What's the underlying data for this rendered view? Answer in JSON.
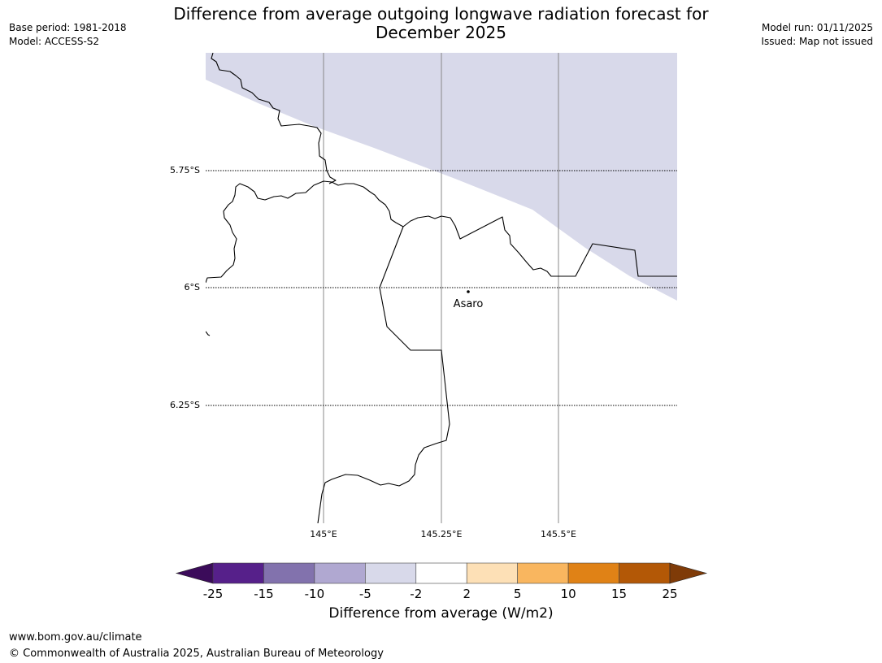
{
  "header": {
    "title_line1": "Difference from average outgoing longwave radiation forecast for",
    "title_line2": "December 2025",
    "base_period": "Base period: 1981-2018",
    "model": "Model: ACCESS-S2",
    "model_run": "Model run: 01/11/2025",
    "issued": "Issued: Map not issued"
  },
  "map": {
    "lat_labels": [
      "5.75°S",
      "6°S",
      "6.25°S"
    ],
    "lon_labels": [
      "145°E",
      "145.25°E",
      "145.5°E"
    ],
    "place_name": "Asaro",
    "colors": {
      "anomaly_fill": "#d8d9ea",
      "coastline": "#000000",
      "meridian": "#888888"
    }
  },
  "colorbar": {
    "label": "Difference from average (W/m2)",
    "ticks": [
      "-25",
      "-15",
      "-10",
      "-5",
      "-2",
      "2",
      "5",
      "10",
      "15",
      "25"
    ],
    "bins": [
      {
        "range": "< -25",
        "color": "#3b0b5a"
      },
      {
        "range": "-25 to -15",
        "color": "#56208a"
      },
      {
        "range": "-15 to -10",
        "color": "#8272ad"
      },
      {
        "range": "-10 to -5",
        "color": "#b0a8d1"
      },
      {
        "range": "-5 to -2",
        "color": "#d8d9ea"
      },
      {
        "range": "-2 to 2",
        "color": "#ffffff"
      },
      {
        "range": "2 to 5",
        "color": "#fde0b6"
      },
      {
        "range": "5 to 10",
        "color": "#f9b65f"
      },
      {
        "range": "10 to 15",
        "color": "#e08216"
      },
      {
        "range": "15 to 25",
        "color": "#b35806"
      },
      {
        "range": "> 25",
        "color": "#7f3b08"
      }
    ]
  },
  "footer": {
    "url": "www.bom.gov.au/climate",
    "copyright": "© Commonwealth of Australia 2025, Australian Bureau of Meteorology"
  }
}
